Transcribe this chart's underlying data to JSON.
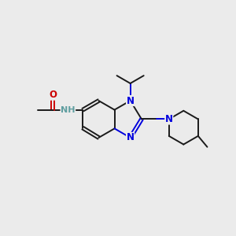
{
  "bg": "#ebebeb",
  "bc": "#1a1a1a",
  "nc": "#0000dd",
  "oc": "#cc0000",
  "nhc": "#5f9ea0",
  "lw": 1.4,
  "fs": 8.5,
  "xlim": [
    0,
    10
  ],
  "ylim": [
    0,
    10
  ]
}
